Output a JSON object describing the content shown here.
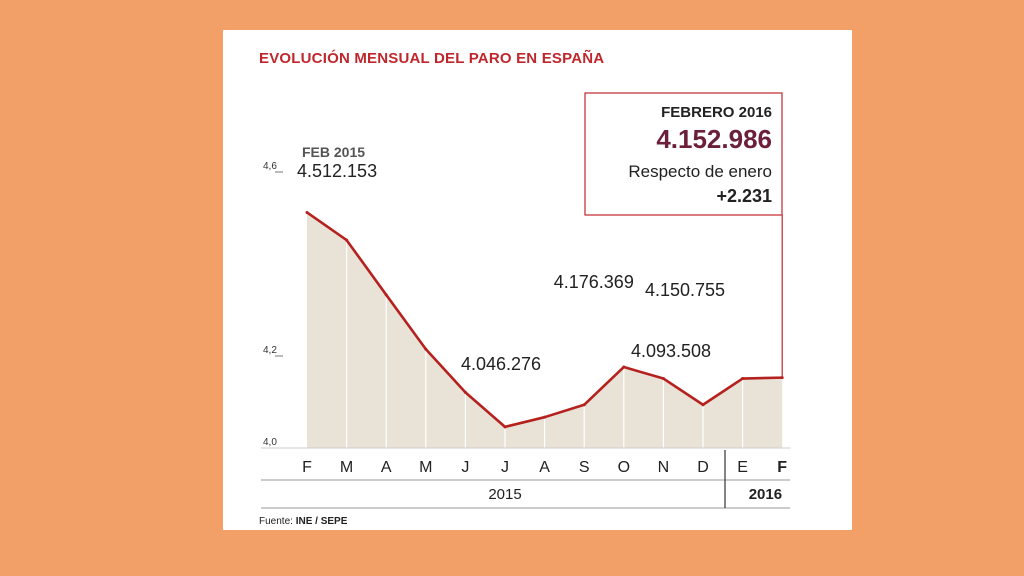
{
  "title": "EVOLUCIÓN MENSUAL DEL PARO EN ESPAÑA",
  "source": {
    "prefix": "Fuente: ",
    "text": "INE / SEPE"
  },
  "highlight_box": {
    "heading": "FEBRERO 2016",
    "value": "4.152.986",
    "subtitle": "Respecto de enero",
    "change": "+2.231"
  },
  "annotations": {
    "start_label": "FEB 2015",
    "start_value": "4.512.153",
    "min_value": "4.046.276",
    "oct_value": "4.176.369",
    "nov_value": "4.150.755",
    "dec_value": "4.093.508"
  },
  "colors": {
    "line": "#b5211e",
    "area": "#e8e3d6",
    "box_border": "#c0272d",
    "box_value": "#6b1f3a",
    "title": "#c0272d",
    "grid": "#ffffff"
  },
  "chart_data": {
    "type": "area",
    "unit": "millones",
    "ylim": [
      4.0,
      4.6
    ],
    "yticks": [
      4.0,
      4.2,
      4.6
    ],
    "ytick_labels": [
      "4,0",
      "4,2",
      "4,6"
    ],
    "categories": [
      "F",
      "M",
      "A",
      "M",
      "J",
      "J",
      "A",
      "S",
      "O",
      "N",
      "D",
      "E",
      "F"
    ],
    "year_groups": [
      {
        "label": "2015",
        "from": 0,
        "to": 10
      },
      {
        "label": "2016",
        "from": 11,
        "to": 12
      }
    ],
    "values": [
      4.512,
      4.452,
      4.333,
      4.215,
      4.121,
      4.046,
      4.067,
      4.094,
      4.176,
      4.151,
      4.094,
      4.151,
      4.153
    ],
    "grid": true
  }
}
